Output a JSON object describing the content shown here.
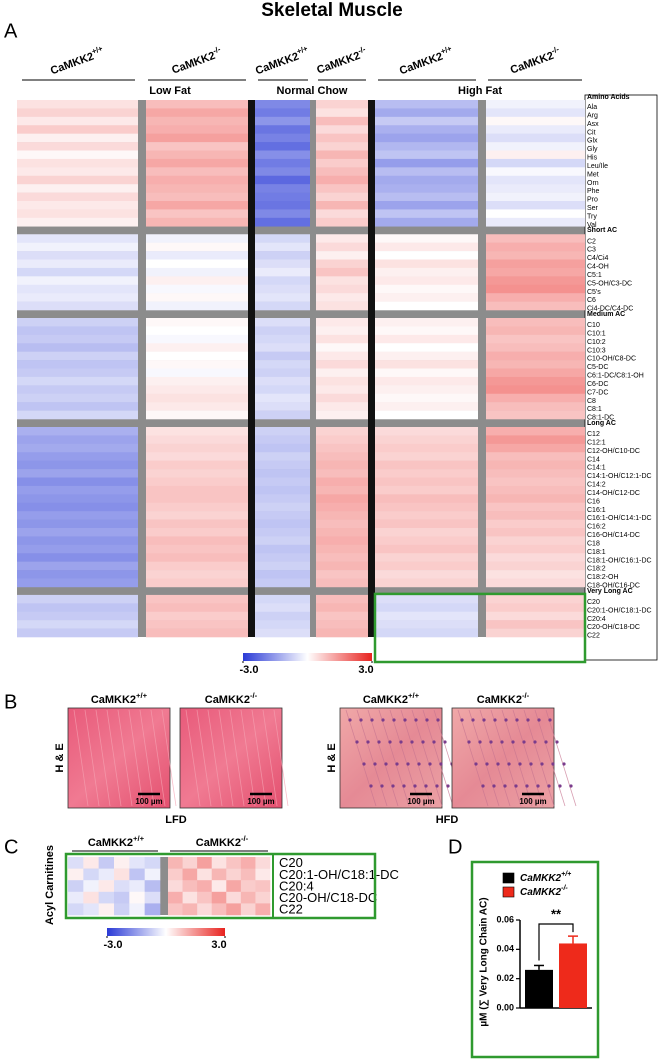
{
  "title": "Skeletal Muscle",
  "panel_a": {
    "letter": "A",
    "diets": [
      "Low Fat",
      "Normal Chow",
      "High Fat"
    ],
    "groups": [
      {
        "name": "CaMKK2",
        "genotype": "+/+"
      },
      {
        "name": "CaMKK2",
        "genotype": "-/-"
      },
      {
        "name": "CaMKK2",
        "genotype": "+/+"
      },
      {
        "name": "CaMKK2",
        "genotype": "-/-"
      },
      {
        "name": "CaMKK2",
        "genotype": "+/+"
      },
      {
        "name": "CaMKK2",
        "genotype": "-/-"
      }
    ],
    "sections": [
      {
        "name": "Amino Acids",
        "rows": [
          {
            "label": "Ala",
            "values": [
              0.4,
              0.9,
              -1.8,
              0.6,
              -1.0,
              -0.2
            ]
          },
          {
            "label": "Arg",
            "values": [
              0.6,
              1.2,
              -2.0,
              0.4,
              -1.3,
              -0.4
            ]
          },
          {
            "label": "Asx",
            "values": [
              0.3,
              1.0,
              -1.6,
              0.9,
              -0.8,
              0.1
            ]
          },
          {
            "label": "Cit",
            "values": [
              0.7,
              1.1,
              -2.1,
              0.5,
              -1.2,
              -0.3
            ]
          },
          {
            "label": "Glx",
            "values": [
              0.2,
              1.3,
              -1.9,
              0.8,
              -1.4,
              -0.5
            ]
          },
          {
            "label": "Gly",
            "values": [
              0.5,
              0.8,
              -2.2,
              0.6,
              -1.1,
              -0.2
            ]
          },
          {
            "label": "His",
            "values": [
              0.1,
              1.0,
              -1.7,
              1.0,
              -0.9,
              0.2
            ]
          },
          {
            "label": "Leu/Ile",
            "values": [
              0.4,
              1.2,
              -2.0,
              0.7,
              -1.5,
              -0.6
            ]
          },
          {
            "label": "Met",
            "values": [
              0.3,
              0.9,
              -1.8,
              0.9,
              -1.0,
              -0.1
            ]
          },
          {
            "label": "Orn",
            "values": [
              0.6,
              1.1,
              -2.3,
              1.1,
              -1.3,
              -0.4
            ]
          },
          {
            "label": "Phe",
            "values": [
              0.2,
              1.0,
              -1.9,
              0.8,
              -1.2,
              -0.3
            ]
          },
          {
            "label": "Pro",
            "values": [
              0.5,
              0.9,
              -2.0,
              0.6,
              -1.0,
              -0.2
            ]
          },
          {
            "label": "Ser",
            "values": [
              0.3,
              1.2,
              -2.1,
              1.0,
              -1.4,
              -0.5
            ]
          },
          {
            "label": "Try",
            "values": [
              0.4,
              0.8,
              -1.8,
              0.5,
              -0.9,
              0.0
            ]
          },
          {
            "label": "Val",
            "values": [
              0.2,
              1.0,
              -2.2,
              0.7,
              -1.3,
              -0.3
            ]
          }
        ]
      },
      {
        "name": "Short AC",
        "rows": [
          {
            "label": "C2",
            "values": [
              -0.4,
              -0.2,
              -0.6,
              0.3,
              0.1,
              0.9
            ]
          },
          {
            "label": "C3",
            "values": [
              -0.2,
              0.1,
              -0.4,
              0.5,
              0.3,
              1.1
            ]
          },
          {
            "label": "C4/Ci4",
            "values": [
              -0.5,
              -0.3,
              -0.7,
              0.2,
              0.0,
              1.0
            ]
          },
          {
            "label": "C4-OH",
            "values": [
              -0.3,
              0.0,
              -0.5,
              0.6,
              0.4,
              1.3
            ]
          },
          {
            "label": "C5:1",
            "values": [
              -0.6,
              -0.2,
              -0.3,
              0.8,
              0.2,
              1.2
            ]
          },
          {
            "label": "C5-OH/C3-DC",
            "values": [
              -0.2,
              0.2,
              -0.6,
              0.4,
              0.3,
              1.4
            ]
          },
          {
            "label": "C5's",
            "values": [
              -0.4,
              -0.1,
              -0.5,
              0.5,
              0.1,
              1.5
            ]
          },
          {
            "label": "C6",
            "values": [
              -0.3,
              0.1,
              -0.4,
              0.3,
              0.2,
              1.1
            ]
          },
          {
            "label": "Ci4-DC/C4-DC",
            "values": [
              -0.5,
              -0.2,
              -0.6,
              0.4,
              0.0,
              0.9
            ]
          }
        ]
      },
      {
        "name": "Medium AC",
        "rows": [
          {
            "label": "C10",
            "values": [
              -0.7,
              0.1,
              -0.5,
              0.3,
              0.2,
              0.9
            ]
          },
          {
            "label": "C10:1",
            "values": [
              -0.9,
              0.0,
              -0.7,
              0.2,
              0.1,
              1.0
            ]
          },
          {
            "label": "C10:2",
            "values": [
              -0.8,
              -0.1,
              -0.6,
              0.4,
              0.3,
              0.8
            ]
          },
          {
            "label": "C10:3",
            "values": [
              -1.0,
              0.2,
              -0.5,
              0.1,
              0.0,
              0.9
            ]
          },
          {
            "label": "C10-OH/C8-DC",
            "values": [
              -0.7,
              0.0,
              -0.8,
              0.3,
              0.2,
              1.1
            ]
          },
          {
            "label": "C5-DC",
            "values": [
              -0.9,
              0.1,
              -0.6,
              0.5,
              0.4,
              1.0
            ]
          },
          {
            "label": "C6:1-DC/C8:1-OH",
            "values": [
              -0.8,
              -0.1,
              -0.7,
              0.2,
              0.1,
              1.2
            ]
          },
          {
            "label": "C6-DC",
            "values": [
              -0.6,
              0.2,
              -0.5,
              0.4,
              0.3,
              1.4
            ]
          },
          {
            "label": "C7-DC",
            "values": [
              -0.8,
              0.3,
              -0.6,
              0.3,
              0.2,
              1.5
            ]
          },
          {
            "label": "C8",
            "values": [
              -0.7,
              0.4,
              -0.4,
              0.5,
              0.1,
              1.1
            ]
          },
          {
            "label": "C8:1",
            "values": [
              -0.9,
              0.3,
              -0.5,
              0.3,
              0.2,
              0.9
            ]
          },
          {
            "label": "C8:1-DC",
            "values": [
              -0.6,
              0.1,
              -0.7,
              0.2,
              0.0,
              0.8
            ]
          }
        ]
      },
      {
        "name": "Long AC",
        "rows": [
          {
            "label": "C12",
            "values": [
              -1.2,
              0.4,
              -0.7,
              0.6,
              0.5,
              1.1
            ]
          },
          {
            "label": "C12:1",
            "values": [
              -1.4,
              0.5,
              -0.8,
              0.7,
              0.6,
              1.4
            ]
          },
          {
            "label": "C12-OH/C10-DC",
            "values": [
              -1.3,
              0.6,
              -0.9,
              0.8,
              0.7,
              1.2
            ]
          },
          {
            "label": "C14",
            "values": [
              -1.5,
              0.5,
              -0.7,
              0.9,
              0.6,
              0.9
            ]
          },
          {
            "label": "C14:1",
            "values": [
              -1.6,
              0.7,
              -0.8,
              1.0,
              0.8,
              1.0
            ]
          },
          {
            "label": "C14:1-OH/C12:1-DC",
            "values": [
              -1.4,
              0.6,
              -0.9,
              0.9,
              0.7,
              0.9
            ]
          },
          {
            "label": "C14:2",
            "values": [
              -1.7,
              0.7,
              -0.8,
              1.1,
              0.8,
              0.8
            ]
          },
          {
            "label": "C14-OH/C12-DC",
            "values": [
              -1.5,
              0.8,
              -0.9,
              1.0,
              0.7,
              0.9
            ]
          },
          {
            "label": "C16",
            "values": [
              -1.6,
              0.8,
              -0.8,
              1.2,
              0.9,
              1.0
            ]
          },
          {
            "label": "C16:1",
            "values": [
              -1.7,
              0.7,
              -0.7,
              1.1,
              0.8,
              0.8
            ]
          },
          {
            "label": "C16:1-OH/C14:1-DC",
            "values": [
              -1.5,
              0.6,
              -0.8,
              1.0,
              0.7,
              0.9
            ]
          },
          {
            "label": "C16:2",
            "values": [
              -1.6,
              0.8,
              -0.9,
              0.9,
              0.8,
              0.7
            ]
          },
          {
            "label": "C16-OH/C14-DC",
            "values": [
              -1.4,
              0.7,
              -0.8,
              1.0,
              0.6,
              0.8
            ]
          },
          {
            "label": "C18",
            "values": [
              -1.6,
              0.9,
              -0.7,
              1.1,
              0.7,
              0.6
            ]
          },
          {
            "label": "C18:1",
            "values": [
              -1.5,
              0.8,
              -0.9,
              1.0,
              0.8,
              0.7
            ]
          },
          {
            "label": "C18:1-OH/C16:1-DC",
            "values": [
              -1.7,
              0.9,
              -0.8,
              0.9,
              0.6,
              0.5
            ]
          },
          {
            "label": "C18:2",
            "values": [
              -1.4,
              0.7,
              -0.7,
              1.0,
              0.7,
              0.6
            ]
          },
          {
            "label": "C18:2-OH",
            "values": [
              -1.6,
              0.6,
              -0.9,
              0.8,
              0.5,
              0.4
            ]
          },
          {
            "label": "C18-OH/C16-DC",
            "values": [
              -1.5,
              0.7,
              -0.8,
              0.9,
              0.6,
              0.5
            ]
          }
        ]
      },
      {
        "name": "Very Long AC",
        "rows": [
          {
            "label": "C20",
            "values": [
              -0.7,
              0.8,
              -0.6,
              0.9,
              -0.5,
              0.6
            ]
          },
          {
            "label": "C20:1-OH/C18:1-DC",
            "values": [
              -0.9,
              0.9,
              -0.5,
              1.0,
              -0.6,
              0.7
            ]
          },
          {
            "label": "C20:4",
            "values": [
              -0.8,
              0.7,
              -0.7,
              0.8,
              -0.4,
              0.5
            ]
          },
          {
            "label": "C20-OH/C18-DC",
            "values": [
              -0.6,
              0.8,
              -0.6,
              0.9,
              -0.5,
              0.8
            ]
          },
          {
            "label": "C22",
            "values": [
              -0.8,
              0.9,
              -0.5,
              1.0,
              -0.6,
              0.6
            ]
          }
        ]
      }
    ],
    "colorbar": {
      "min": {
        "value": -3,
        "label": "-3.0"
      },
      "max": {
        "value": 3,
        "label": "3.0"
      }
    }
  },
  "panel_b": {
    "letter": "B",
    "stain": "H & E",
    "diets": [
      "LFD",
      "HFD"
    ],
    "images": [
      {
        "name": "CaMKK2",
        "genotype": "+/+",
        "scale": "100 µm"
      },
      {
        "name": "CaMKK2",
        "genotype": "-/-",
        "scale": "100 µm"
      },
      {
        "name": "CaMKK2",
        "genotype": "+/+",
        "scale": "100 µm"
      },
      {
        "name": "CaMKK2",
        "genotype": "-/-",
        "scale": "100 µm"
      }
    ]
  },
  "panel_c": {
    "letter": "C",
    "ylabel": "Acyl Carnitines",
    "groups": [
      {
        "name": "CaMKK2",
        "genotype": "+/+"
      },
      {
        "name": "CaMKK2",
        "genotype": "-/-"
      }
    ],
    "rows": [
      {
        "label": "C20",
        "wt": [
          -0.5,
          0.3,
          -0.8,
          0.2,
          -0.4,
          -0.6
        ],
        "ko": [
          1.0,
          0.6,
          1.3,
          0.4,
          0.8,
          1.1,
          0.5
        ]
      },
      {
        "label": "C20:1-OH/C18:1-DC",
        "wt": [
          0.2,
          -0.6,
          -0.3,
          0.4,
          -0.9,
          -0.2
        ],
        "ko": [
          0.7,
          1.2,
          0.4,
          1.0,
          0.6,
          0.9,
          0.3
        ]
      },
      {
        "label": "C20:4",
        "wt": [
          -0.7,
          -0.2,
          0.3,
          -0.5,
          -0.3,
          -1.0
        ],
        "ko": [
          0.5,
          0.9,
          1.1,
          0.3,
          1.2,
          0.7,
          0.8
        ]
      },
      {
        "label": "C20-OH/C18-DC",
        "wt": [
          -0.3,
          0.4,
          -0.6,
          -0.8,
          0.1,
          -0.5
        ],
        "ko": [
          1.1,
          0.4,
          0.8,
          1.3,
          0.5,
          1.0,
          0.6
        ]
      },
      {
        "label": "C22",
        "wt": [
          -0.6,
          -0.4,
          0.2,
          -0.7,
          -0.2,
          -1.2
        ],
        "ko": [
          0.8,
          1.0,
          0.5,
          0.9,
          1.3,
          0.6,
          1.1
        ]
      }
    ],
    "colorbar": {
      "min": {
        "value": -3,
        "label": "-3.0"
      },
      "max": {
        "value": 3,
        "label": "3.0"
      }
    }
  },
  "panel_d": {
    "letter": "D",
    "chart_data": {
      "type": "bar",
      "ylabel": "µM (∑ Very Long Chain AC)",
      "series": [
        {
          "name": "CaMKK2",
          "genotype": "+/+",
          "color": "#000000",
          "values": [
            0.026
          ],
          "errors": [
            0.003
          ]
        },
        {
          "name": "CaMKK2",
          "genotype": "-/-",
          "color": "#ee2a1b",
          "values": [
            0.044
          ],
          "errors": [
            0.005
          ]
        }
      ],
      "ylim": [
        0,
        0.06
      ],
      "yticks": [
        {
          "value": 0,
          "label": "0.00"
        },
        {
          "value": 0.02,
          "label": "0.02"
        },
        {
          "value": 0.04,
          "label": "0.04"
        },
        {
          "value": 0.06,
          "label": "0.06"
        }
      ],
      "significance": "**"
    }
  }
}
